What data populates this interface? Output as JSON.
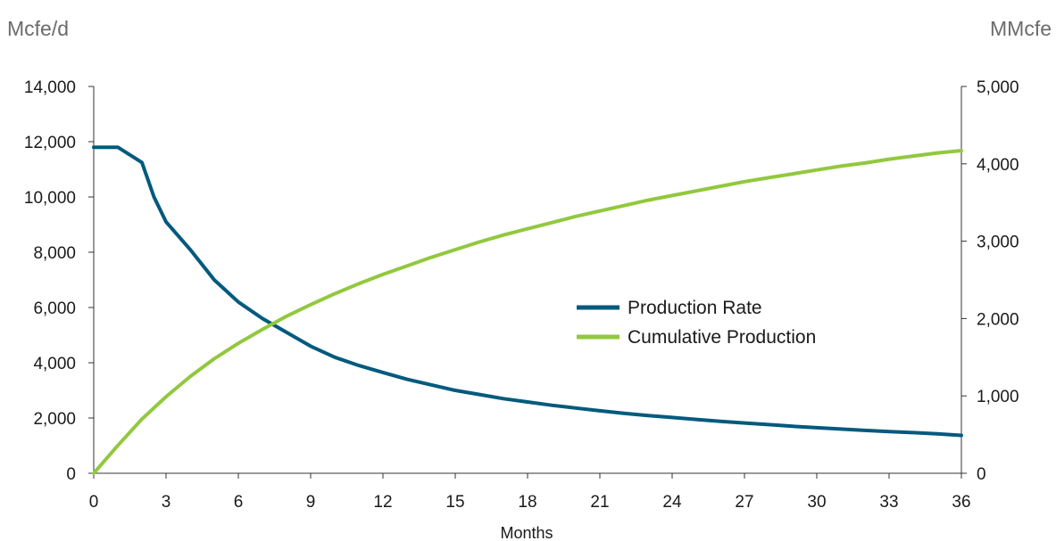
{
  "chart_data": {
    "type": "line",
    "title": "",
    "xlabel": "Months",
    "ylabel_left_unit": "Mcfe/d",
    "ylabel_right_unit": "MMcfe",
    "x_ticks": [
      "0",
      "3",
      "6",
      "9",
      "12",
      "15",
      "18",
      "21",
      "24",
      "27",
      "30",
      "33",
      "36"
    ],
    "y_left_ticks": [
      "0",
      "2,000",
      "4,000",
      "6,000",
      "8,000",
      "10,000",
      "12,000",
      "14,000"
    ],
    "y_right_ticks": [
      "0",
      "1,000",
      "2,000",
      "3,000",
      "4,000",
      "5,000"
    ],
    "xlim": [
      0,
      36
    ],
    "ylim_left": [
      0,
      14000
    ],
    "ylim_right": [
      0,
      5000
    ],
    "grid": false,
    "legend_position": "center-right",
    "series": [
      {
        "name": "Production Rate",
        "axis": "left",
        "color": "#005A7D",
        "x": [
          0,
          1,
          2,
          2.5,
          3,
          4,
          5,
          6,
          7,
          8,
          9,
          10,
          11,
          12,
          13,
          14,
          15,
          16,
          17,
          18,
          19,
          20,
          21,
          22,
          23,
          24,
          25,
          26,
          27,
          28,
          29,
          30,
          31,
          32,
          33,
          34,
          35,
          36
        ],
        "values": [
          11800,
          11800,
          11250,
          10000,
          9100,
          8100,
          7000,
          6200,
          5600,
          5100,
          4600,
          4200,
          3900,
          3650,
          3400,
          3200,
          3000,
          2850,
          2700,
          2580,
          2460,
          2360,
          2260,
          2170,
          2090,
          2020,
          1950,
          1880,
          1820,
          1760,
          1700,
          1650,
          1600,
          1550,
          1510,
          1470,
          1430,
          1370
        ]
      },
      {
        "name": "Cumulative Production",
        "axis": "right",
        "color": "#92C83E",
        "x": [
          0,
          1,
          2,
          3,
          4,
          5,
          6,
          7,
          8,
          9,
          10,
          11,
          12,
          13,
          14,
          15,
          16,
          17,
          18,
          19,
          20,
          21,
          22,
          23,
          24,
          25,
          26,
          27,
          28,
          29,
          30,
          31,
          32,
          33,
          34,
          35,
          36
        ],
        "values": [
          0,
          360,
          700,
          990,
          1250,
          1480,
          1680,
          1860,
          2030,
          2180,
          2320,
          2450,
          2570,
          2680,
          2790,
          2890,
          2990,
          3080,
          3160,
          3240,
          3320,
          3390,
          3460,
          3530,
          3590,
          3650,
          3710,
          3770,
          3820,
          3870,
          3920,
          3970,
          4010,
          4060,
          4100,
          4140,
          4170
        ]
      }
    ]
  }
}
